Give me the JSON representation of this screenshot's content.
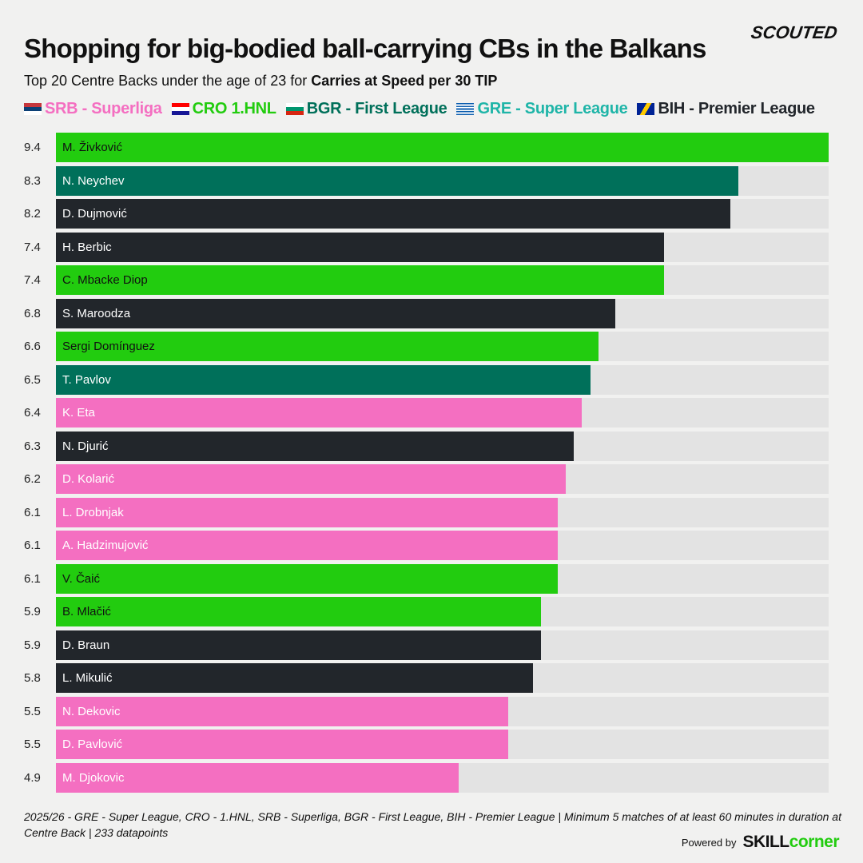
{
  "brand": "SCOUTED",
  "title": "Shopping for big-bodied ball-carrying CBs in the Balkans",
  "subtitle_prefix": "Top 20 Centre Backs under the age of 23 for ",
  "subtitle_bold": "Carries at Speed per 30 TIP",
  "legend": [
    {
      "key": "SRB",
      "label": "SRB - Superliga",
      "color": "#f46fc1",
      "flag": "serbia-flag-icon"
    },
    {
      "key": "CRO",
      "label": "CRO 1.HNL",
      "color": "#22cc0f",
      "flag": "croatia-flag-icon"
    },
    {
      "key": "BGR",
      "label": "BGR - First League",
      "color": "#00705a",
      "flag": "bulgaria-flag-icon"
    },
    {
      "key": "GRE",
      "label": "GRE - Super League",
      "color": "#1fb5a8",
      "flag": "greece-flag-icon"
    },
    {
      "key": "BIH",
      "label": "BIH - Premier League",
      "color": "#22262b",
      "flag": "bosnia-flag-icon"
    }
  ],
  "chart_data": {
    "type": "bar",
    "orientation": "horizontal",
    "title": "Shopping for big-bodied ball-carrying CBs in the Balkans",
    "xlim": [
      0,
      9.4
    ],
    "bar_colors": {
      "SRB": "#f46fc1",
      "CRO": "#22cc0f",
      "BGR": "#00705a",
      "BIH": "#22262b"
    },
    "bars": [
      {
        "name": "M. Živković",
        "value": 9.4,
        "league": "CRO"
      },
      {
        "name": "N. Neychev",
        "value": 8.3,
        "league": "BGR"
      },
      {
        "name": "D. Dujmović",
        "value": 8.2,
        "league": "BIH"
      },
      {
        "name": "H. Berbic",
        "value": 7.4,
        "league": "BIH"
      },
      {
        "name": "C. Mbacke Diop",
        "value": 7.4,
        "league": "CRO"
      },
      {
        "name": "S. Maroodza",
        "value": 6.8,
        "league": "BIH"
      },
      {
        "name": "Sergi Domínguez",
        "value": 6.6,
        "league": "CRO"
      },
      {
        "name": "T. Pavlov",
        "value": 6.5,
        "league": "BGR"
      },
      {
        "name": "K. Eta",
        "value": 6.4,
        "league": "SRB"
      },
      {
        "name": "N. Djurić",
        "value": 6.3,
        "league": "BIH"
      },
      {
        "name": "D. Kolarić",
        "value": 6.2,
        "league": "SRB"
      },
      {
        "name": "L. Drobnjak",
        "value": 6.1,
        "league": "SRB"
      },
      {
        "name": "A. Hadzimujović",
        "value": 6.1,
        "league": "SRB"
      },
      {
        "name": "V. Čaić",
        "value": 6.1,
        "league": "CRO"
      },
      {
        "name": "B. Mlačić",
        "value": 5.9,
        "league": "CRO"
      },
      {
        "name": "D. Braun",
        "value": 5.9,
        "league": "BIH"
      },
      {
        "name": "L. Mikulić",
        "value": 5.8,
        "league": "BIH"
      },
      {
        "name": "N. Dekovic",
        "value": 5.5,
        "league": "SRB"
      },
      {
        "name": "D. Pavlović",
        "value": 5.5,
        "league": "SRB"
      },
      {
        "name": "M. Djokovic",
        "value": 4.9,
        "league": "SRB"
      }
    ]
  },
  "footnote": "2025/26 - GRE - Super League, CRO - 1.HNL, SRB - Superliga, BGR - First League, BIH - Premier League | Minimum 5 matches of at least 60 minutes in duration at Centre Back | 233 datapoints",
  "powered_by": "Powered by",
  "skillcorner_a": "SKILL",
  "skillcorner_b": "corner"
}
